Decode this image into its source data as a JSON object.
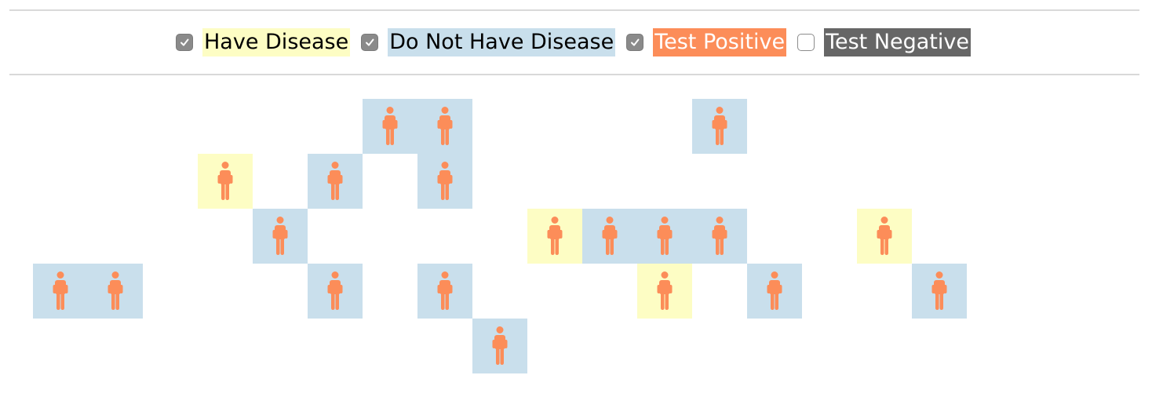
{
  "colors": {
    "have_disease": "#fdfdc4",
    "no_disease": "#c9dfec",
    "test_positive": "#fc8d59",
    "test_negative": "#666666",
    "person": "#fc8d59"
  },
  "legend": [
    {
      "label": "Have Disease",
      "checked": true,
      "bg": "#fdfdc4",
      "fg": "#000000"
    },
    {
      "label": "Do Not Have Disease",
      "checked": true,
      "bg": "#c9dfec",
      "fg": "#000000"
    },
    {
      "label": "Test Positive",
      "checked": true,
      "bg": "#fc8d59",
      "fg": "#ffffff"
    },
    {
      "label": "Test Negative",
      "checked": false,
      "bg": "#666666",
      "fg": "#ffffff"
    }
  ],
  "people": [
    {
      "row": 0,
      "col": 6,
      "disease": false,
      "test": "positive"
    },
    {
      "row": 0,
      "col": 7,
      "disease": false,
      "test": "positive"
    },
    {
      "row": 0,
      "col": 12,
      "disease": false,
      "test": "positive"
    },
    {
      "row": 1,
      "col": 3,
      "disease": true,
      "test": "positive"
    },
    {
      "row": 1,
      "col": 5,
      "disease": false,
      "test": "positive"
    },
    {
      "row": 1,
      "col": 7,
      "disease": false,
      "test": "positive"
    },
    {
      "row": 2,
      "col": 4,
      "disease": false,
      "test": "positive"
    },
    {
      "row": 2,
      "col": 9,
      "disease": true,
      "test": "positive"
    },
    {
      "row": 2,
      "col": 10,
      "disease": false,
      "test": "positive"
    },
    {
      "row": 2,
      "col": 11,
      "disease": false,
      "test": "positive"
    },
    {
      "row": 2,
      "col": 12,
      "disease": false,
      "test": "positive"
    },
    {
      "row": 2,
      "col": 15,
      "disease": true,
      "test": "positive"
    },
    {
      "row": 3,
      "col": 0,
      "disease": false,
      "test": "positive"
    },
    {
      "row": 3,
      "col": 1,
      "disease": false,
      "test": "positive"
    },
    {
      "row": 3,
      "col": 5,
      "disease": false,
      "test": "positive"
    },
    {
      "row": 3,
      "col": 7,
      "disease": false,
      "test": "positive"
    },
    {
      "row": 3,
      "col": 11,
      "disease": true,
      "test": "positive"
    },
    {
      "row": 3,
      "col": 13,
      "disease": false,
      "test": "positive"
    },
    {
      "row": 3,
      "col": 16,
      "disease": false,
      "test": "positive"
    },
    {
      "row": 4,
      "col": 8,
      "disease": false,
      "test": "positive"
    }
  ]
}
